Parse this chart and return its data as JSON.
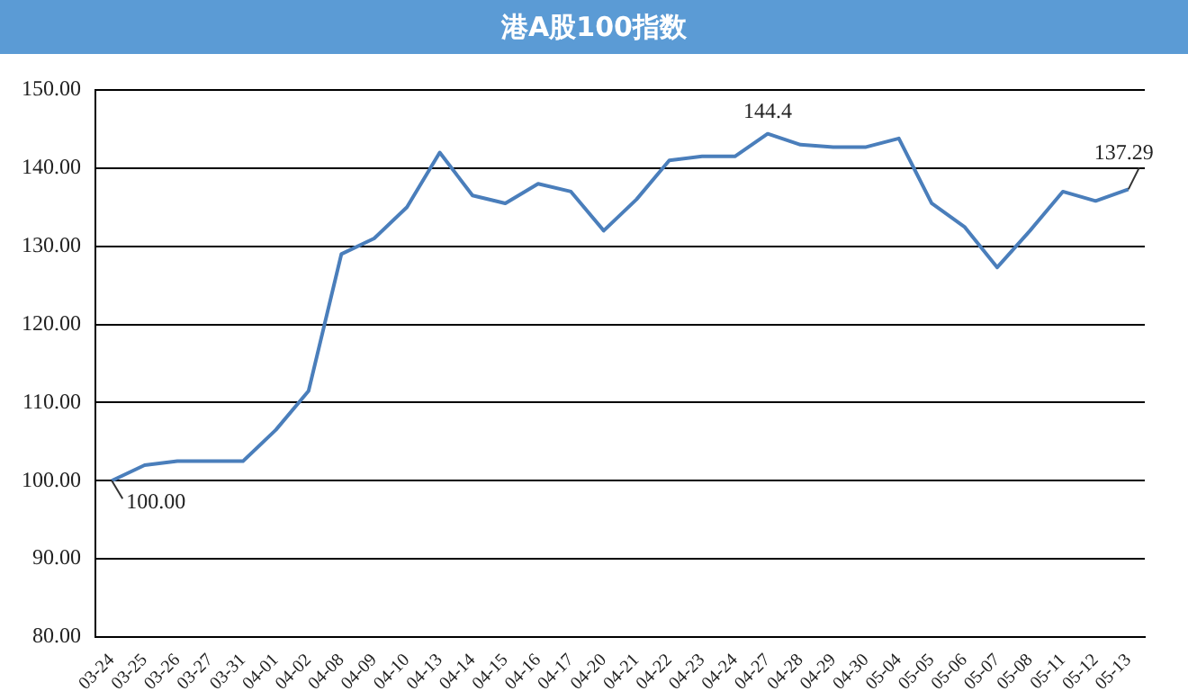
{
  "chart_data": {
    "type": "line",
    "title": "港A股100指数",
    "categories": [
      "03-24",
      "03-25",
      "03-26",
      "03-27",
      "03-31",
      "04-01",
      "04-02",
      "04-08",
      "04-09",
      "04-10",
      "04-13",
      "04-14",
      "04-15",
      "04-16",
      "04-17",
      "04-20",
      "04-21",
      "04-22",
      "04-23",
      "04-24",
      "04-27",
      "04-28",
      "04-29",
      "04-30",
      "05-04",
      "05-05",
      "05-06",
      "05-07",
      "05-08",
      "05-11",
      "05-12",
      "05-13"
    ],
    "series": [
      {
        "color": "#4a7ebb",
        "values": [
          100,
          102,
          102.5,
          102.5,
          102.5,
          106.5,
          111.5,
          129,
          131,
          135,
          142,
          136.5,
          135.5,
          138,
          137,
          132,
          136,
          141,
          141.5,
          141.5,
          144.4,
          143,
          142.7,
          142.7,
          143.8,
          135.5,
          132.5,
          127.3,
          132,
          137,
          135.8,
          137.29
        ],
        "value_labels": [
          "100.00",
          null,
          null,
          null,
          null,
          null,
          null,
          null,
          null,
          null,
          null,
          null,
          null,
          null,
          null,
          null,
          null,
          null,
          null,
          null,
          "144.4",
          null,
          null,
          null,
          null,
          null,
          null,
          null,
          null,
          null,
          null,
          "137.29"
        ]
      }
    ],
    "ylim": [
      80,
      150
    ],
    "yticks": [
      {
        "value": 80,
        "label": "80.00"
      },
      {
        "value": 90,
        "label": "90.00"
      },
      {
        "value": 100,
        "label": "100.00"
      },
      {
        "value": 110,
        "label": "110.00"
      },
      {
        "value": 120,
        "label": "120.00"
      },
      {
        "value": 130,
        "label": "130.00"
      },
      {
        "value": 140,
        "label": "140.00"
      },
      {
        "value": 150,
        "label": "150.00"
      }
    ],
    "grid": "y",
    "legend": false,
    "marker": "none",
    "line_style": "solid"
  }
}
